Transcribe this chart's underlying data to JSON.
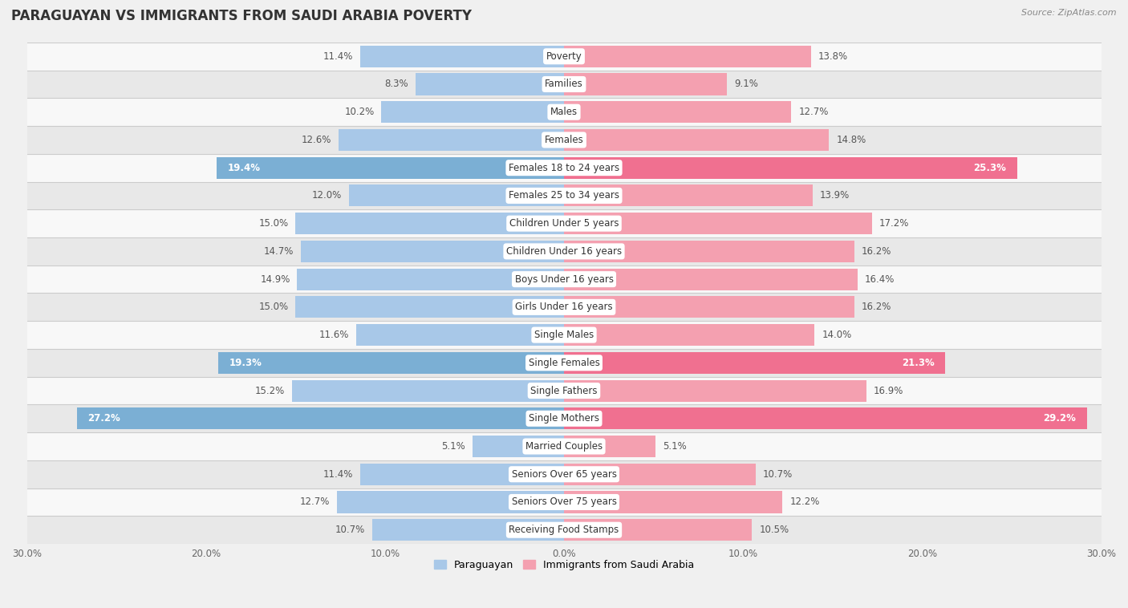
{
  "title": "PARAGUAYAN VS IMMIGRANTS FROM SAUDI ARABIA POVERTY",
  "source": "Source: ZipAtlas.com",
  "categories": [
    "Poverty",
    "Families",
    "Males",
    "Females",
    "Females 18 to 24 years",
    "Females 25 to 34 years",
    "Children Under 5 years",
    "Children Under 16 years",
    "Boys Under 16 years",
    "Girls Under 16 years",
    "Single Males",
    "Single Females",
    "Single Fathers",
    "Single Mothers",
    "Married Couples",
    "Seniors Over 65 years",
    "Seniors Over 75 years",
    "Receiving Food Stamps"
  ],
  "paraguayan": [
    11.4,
    8.3,
    10.2,
    12.6,
    19.4,
    12.0,
    15.0,
    14.7,
    14.9,
    15.0,
    11.6,
    19.3,
    15.2,
    27.2,
    5.1,
    11.4,
    12.7,
    10.7
  ],
  "immigrants": [
    13.8,
    9.1,
    12.7,
    14.8,
    25.3,
    13.9,
    17.2,
    16.2,
    16.4,
    16.2,
    14.0,
    21.3,
    16.9,
    29.2,
    5.1,
    10.7,
    12.2,
    10.5
  ],
  "paraguayan_color": "#a8c8e8",
  "immigrants_color": "#f4a0b0",
  "paraguayan_highlight_color": "#7bafd4",
  "immigrants_highlight_color": "#f07090",
  "highlight_rows": [
    4,
    11,
    13
  ],
  "x_max": 30.0,
  "legend_paraguayan": "Paraguayan",
  "legend_immigrants": "Immigrants from Saudi Arabia",
  "background_color": "#f0f0f0",
  "row_bg_light": "#f8f8f8",
  "row_bg_dark": "#e8e8e8",
  "bar_height": 0.78,
  "title_fontsize": 12,
  "label_fontsize": 8.5,
  "value_fontsize": 8.5,
  "tick_fontsize": 8.5,
  "separator_color": "#cccccc"
}
